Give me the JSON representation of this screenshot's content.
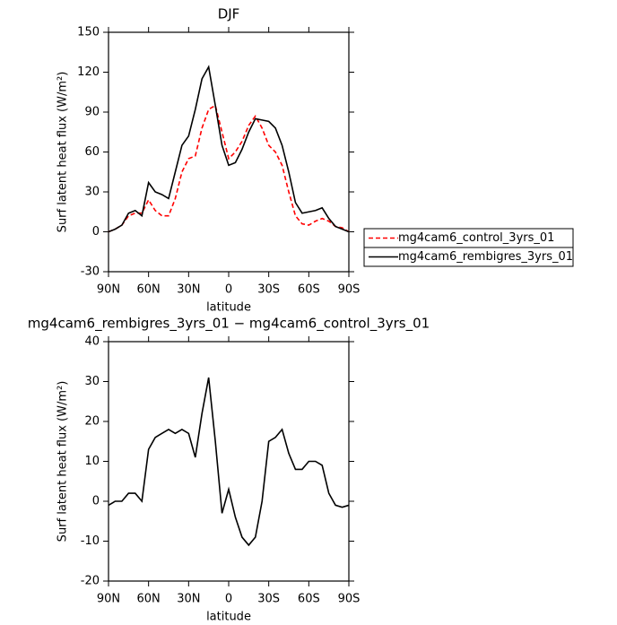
{
  "chart_data": [
    {
      "type": "line",
      "title": "DJF",
      "xlabel": "latitude",
      "ylabel": "Surf latent heat flux (W/m²)",
      "x": [
        90,
        85,
        80,
        75,
        70,
        65,
        60,
        55,
        50,
        45,
        40,
        35,
        30,
        25,
        20,
        15,
        10,
        5,
        0,
        -5,
        -10,
        -15,
        -20,
        -25,
        -30,
        -35,
        -40,
        -45,
        -50,
        -55,
        -60,
        -65,
        -70,
        -75,
        -80,
        -85,
        -90
      ],
      "series": [
        {
          "name": "mg4cam6_control_3yrs_01",
          "color": "#ff0000",
          "linestyle": "dashed",
          "values": [
            0,
            2,
            5,
            12,
            14,
            14,
            24,
            16,
            12,
            12,
            25,
            45,
            55,
            57,
            78,
            92,
            95,
            75,
            55,
            60,
            68,
            80,
            87,
            78,
            65,
            60,
            50,
            30,
            12,
            6,
            5,
            8,
            10,
            8,
            4,
            3,
            0
          ]
        },
        {
          "name": "mg4cam6_rembigres_3yrs_01",
          "color": "#000000",
          "linestyle": "solid",
          "values": [
            0,
            2,
            5,
            14,
            16,
            12,
            37,
            30,
            28,
            25,
            45,
            65,
            72,
            92,
            115,
            124,
            95,
            65,
            50,
            52,
            62,
            75,
            85,
            84,
            83,
            78,
            65,
            45,
            22,
            14,
            15,
            16,
            18,
            10,
            4,
            2,
            0
          ]
        }
      ],
      "xlim": [
        90,
        -90
      ],
      "xticks": [
        {
          "value": 90,
          "label": "90N"
        },
        {
          "value": 60,
          "label": "60N"
        },
        {
          "value": 30,
          "label": "30N"
        },
        0,
        {
          "value": -30,
          "label": "30S"
        },
        {
          "value": -60,
          "label": "60S"
        },
        {
          "value": -90,
          "label": "90S"
        }
      ],
      "ylim": [
        -30,
        150
      ],
      "yticks": [
        -30,
        0,
        30,
        60,
        90,
        120,
        150
      ],
      "legend": "outside-right"
    },
    {
      "type": "line",
      "title": "mg4cam6_rembigres_3yrs_01 − mg4cam6_control_3yrs_01",
      "xlabel": "latitude",
      "ylabel": "Surf latent heat flux (W/m²)",
      "x": [
        90,
        85,
        80,
        75,
        70,
        65,
        60,
        55,
        50,
        45,
        40,
        35,
        30,
        25,
        20,
        15,
        10,
        5,
        0,
        -5,
        -10,
        -15,
        -20,
        -25,
        -30,
        -35,
        -40,
        -45,
        -50,
        -55,
        -60,
        -65,
        -70,
        -75,
        -80,
        -85,
        -90
      ],
      "values": [
        -1,
        0,
        0,
        2,
        2,
        0,
        13,
        16,
        17,
        18,
        17,
        18,
        17,
        11,
        22,
        31,
        15,
        -3,
        3,
        -4,
        -9,
        -11,
        -9,
        0,
        15,
        16,
        18,
        12,
        8,
        8,
        10,
        10,
        9,
        2,
        -1,
        -1.5,
        -1
      ],
      "color": "#000000",
      "xlim": [
        90,
        -90
      ],
      "xticks": [
        {
          "value": 90,
          "label": "90N"
        },
        {
          "value": 60,
          "label": "60N"
        },
        {
          "value": 30,
          "label": "30N"
        },
        0,
        {
          "value": -30,
          "label": "30S"
        },
        {
          "value": -60,
          "label": "60S"
        },
        {
          "value": -90,
          "label": "90S"
        }
      ],
      "ylim": [
        -20,
        40
      ],
      "yticks": [
        -20,
        -10,
        0,
        10,
        20,
        30,
        40
      ]
    }
  ]
}
